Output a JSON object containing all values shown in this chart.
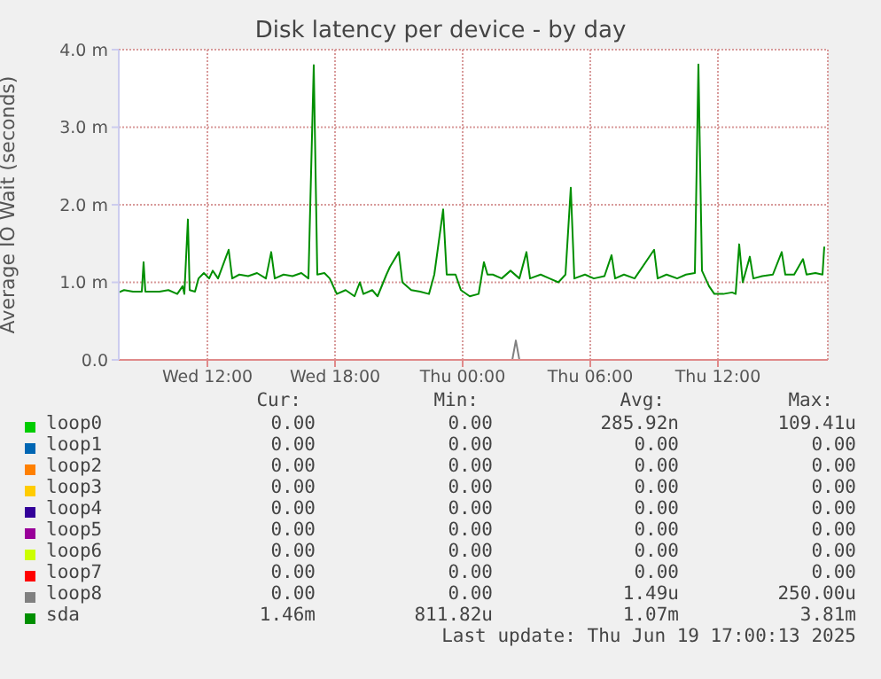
{
  "chart_data": {
    "type": "line",
    "title": "Disk latency per device - by day",
    "ylabel": "Average IO Wait (seconds)",
    "xlim": [
      "2025-06-18T07:50",
      "2025-06-19T17:10"
    ],
    "xticks": [
      {
        "value": "2025-06-18T12:00",
        "label": "Wed 12:00"
      },
      {
        "value": "2025-06-18T18:00",
        "label": "Wed 18:00"
      },
      {
        "value": "2025-06-19T00:00",
        "label": "Thu 00:00"
      },
      {
        "value": "2025-06-19T06:00",
        "label": "Thu 06:00"
      },
      {
        "value": "2025-06-19T12:00",
        "label": "Thu 12:00"
      }
    ],
    "ylim": [
      0,
      4
    ],
    "yticks": [
      {
        "value": 0,
        "label": "0.0"
      },
      {
        "value": 1,
        "label": "1.0 m"
      },
      {
        "value": 2,
        "label": "2.0 m"
      },
      {
        "value": 3,
        "label": "3.0 m"
      },
      {
        "value": 4,
        "label": "4.0 m"
      }
    ],
    "grid": true,
    "legend": "bottom",
    "marker": "none",
    "line_style": "solid",
    "series": [
      {
        "name": "loop0",
        "color": "#00cc00"
      },
      {
        "name": "loop1",
        "color": "#0066b3"
      },
      {
        "name": "loop2",
        "color": "#ff8000"
      },
      {
        "name": "loop3",
        "color": "#ffcc00"
      },
      {
        "name": "loop4",
        "color": "#330099"
      },
      {
        "name": "loop5",
        "color": "#990099"
      },
      {
        "name": "loop6",
        "color": "#ccff00"
      },
      {
        "name": "loop7",
        "color": "#ff0000"
      },
      {
        "name": "loop8",
        "color": "#808080",
        "x": [
          "2025-06-19T02:20",
          "2025-06-19T02:30",
          "2025-06-19T02:40"
        ],
        "values": [
          0,
          0.25,
          0
        ]
      },
      {
        "name": "sda",
        "color": "#008f00",
        "x": [
          "2025-06-18T07:50",
          "2025-06-18T08:05",
          "2025-06-18T08:30",
          "2025-06-18T08:55",
          "2025-06-18T09:00",
          "2025-06-18T09:05",
          "2025-06-18T09:45",
          "2025-06-18T10:10",
          "2025-06-18T10:35",
          "2025-06-18T10:50",
          "2025-06-18T10:55",
          "2025-06-18T11:05",
          "2025-06-18T11:10",
          "2025-06-18T11:25",
          "2025-06-18T11:35",
          "2025-06-18T11:50",
          "2025-06-18T12:05",
          "2025-06-18T12:15",
          "2025-06-18T12:30",
          "2025-06-18T13:00",
          "2025-06-18T13:10",
          "2025-06-18T13:30",
          "2025-06-18T13:55",
          "2025-06-18T14:20",
          "2025-06-18T14:45",
          "2025-06-18T15:00",
          "2025-06-18T15:10",
          "2025-06-18T15:35",
          "2025-06-18T16:00",
          "2025-06-18T16:25",
          "2025-06-18T16:45",
          "2025-06-18T17:00",
          "2025-06-18T17:10",
          "2025-06-18T17:30",
          "2025-06-18T17:45",
          "2025-06-18T18:05",
          "2025-06-18T18:30",
          "2025-06-18T18:55",
          "2025-06-18T19:10",
          "2025-06-18T19:20",
          "2025-06-18T19:45",
          "2025-06-18T20:00",
          "2025-06-18T20:25",
          "2025-06-18T20:35",
          "2025-06-18T21:00",
          "2025-06-18T21:10",
          "2025-06-18T21:35",
          "2025-06-18T22:00",
          "2025-06-18T22:25",
          "2025-06-18T22:40",
          "2025-06-18T23:05",
          "2025-06-18T23:15",
          "2025-06-18T23:40",
          "2025-06-18T23:55",
          "2025-06-19T00:20",
          "2025-06-19T00:45",
          "2025-06-19T01:00",
          "2025-06-19T01:10",
          "2025-06-19T01:25",
          "2025-06-19T01:50",
          "2025-06-19T02:15",
          "2025-06-19T02:40",
          "2025-06-19T03:00",
          "2025-06-19T03:10",
          "2025-06-19T03:40",
          "2025-06-19T04:05",
          "2025-06-19T04:30",
          "2025-06-19T04:50",
          "2025-06-19T05:05",
          "2025-06-19T05:15",
          "2025-06-19T05:45",
          "2025-06-19T06:10",
          "2025-06-19T06:40",
          "2025-06-19T07:00",
          "2025-06-19T07:10",
          "2025-06-19T07:35",
          "2025-06-19T08:05",
          "2025-06-19T09:00",
          "2025-06-19T09:10",
          "2025-06-19T09:35",
          "2025-06-19T10:05",
          "2025-06-19T10:30",
          "2025-06-19T10:55",
          "2025-06-19T11:05",
          "2025-06-19T11:15",
          "2025-06-19T11:35",
          "2025-06-19T11:50",
          "2025-06-19T12:15",
          "2025-06-19T12:40",
          "2025-06-19T12:50",
          "2025-06-19T13:00",
          "2025-06-19T13:10",
          "2025-06-19T13:30",
          "2025-06-19T13:40",
          "2025-06-19T14:05",
          "2025-06-19T14:35",
          "2025-06-19T15:00",
          "2025-06-19T15:10",
          "2025-06-19T15:35",
          "2025-06-19T16:00",
          "2025-06-19T16:10",
          "2025-06-19T16:35",
          "2025-06-19T16:55",
          "2025-06-19T17:00"
        ],
        "values": [
          0.87,
          0.9,
          0.88,
          0.88,
          1.26,
          0.88,
          0.88,
          0.9,
          0.85,
          0.95,
          0.85,
          1.81,
          0.9,
          0.88,
          1.05,
          1.12,
          1.05,
          1.15,
          1.05,
          1.42,
          1.05,
          1.1,
          1.08,
          1.12,
          1.05,
          1.39,
          1.05,
          1.1,
          1.08,
          1.12,
          1.05,
          3.8,
          1.1,
          1.12,
          1.05,
          0.85,
          0.9,
          0.82,
          1.0,
          0.85,
          0.9,
          0.82,
          1.1,
          1.2,
          1.39,
          1.0,
          0.9,
          0.88,
          0.85,
          1.1,
          1.94,
          1.1,
          1.1,
          0.9,
          0.82,
          0.85,
          1.26,
          1.1,
          1.1,
          1.05,
          1.15,
          1.05,
          1.39,
          1.05,
          1.1,
          1.05,
          1.0,
          1.1,
          2.22,
          1.05,
          1.1,
          1.05,
          1.08,
          1.35,
          1.05,
          1.1,
          1.05,
          1.42,
          1.05,
          1.1,
          1.05,
          1.1,
          1.12,
          3.81,
          1.15,
          0.95,
          0.85,
          0.85,
          0.87,
          0.85,
          1.49,
          1.0,
          1.33,
          1.05,
          1.08,
          1.1,
          1.39,
          1.1,
          1.1,
          1.3,
          1.1,
          1.12,
          1.1,
          1.46
        ]
      }
    ],
    "annotations": [
      "Cur:",
      "Min:",
      "Avg:",
      "Max:",
      "0.00",
      "0.00",
      "285.92n",
      "109.41u",
      "0.00",
      "0.00",
      "0.00",
      "0.00",
      "0.00",
      "0.00",
      "0.00",
      "0.00",
      "0.00",
      "0.00",
      "0.00",
      "0.00",
      "0.00",
      "0.00",
      "0.00",
      "0.00",
      "0.00",
      "0.00",
      "0.00",
      "0.00",
      "0.00",
      "0.00",
      "0.00",
      "0.00",
      "0.00",
      "0.00",
      "0.00",
      "0.00",
      "0.00",
      "0.00",
      "1.49u",
      "250.00u",
      "1.46m",
      "811.82u",
      "1.07m",
      "3.81m",
      "Last update: Thu Jun 19 17:00:13 2025"
    ]
  }
}
